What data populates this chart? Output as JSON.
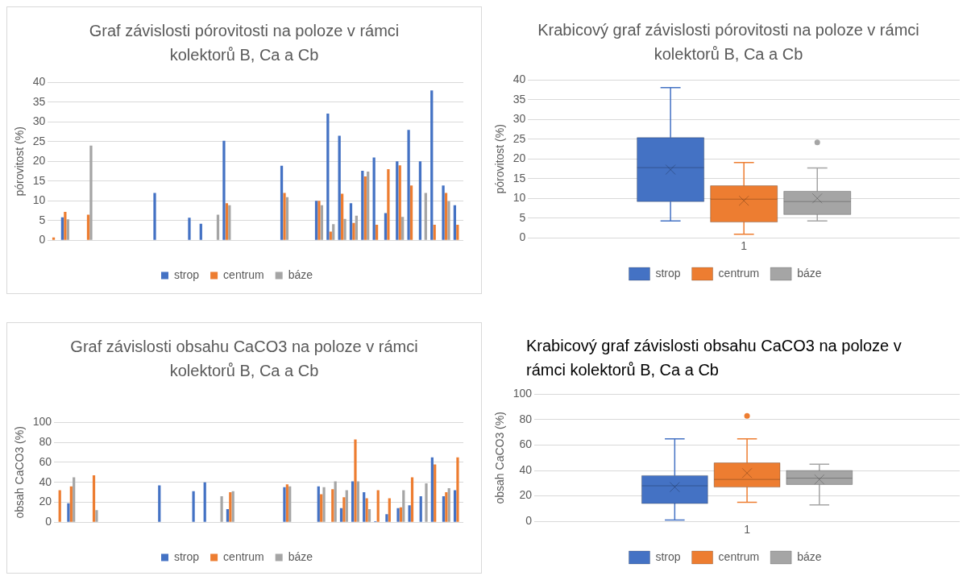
{
  "chart_data": [
    {
      "type": "bar",
      "title": "Graf závislosti pórovitosti na poloze v rámci kolektorů B, Ca a Cb",
      "ylabel": "pórovitost (%)",
      "categories": [
        null,
        null,
        null,
        null,
        null,
        null,
        null,
        null,
        null,
        null,
        null,
        null,
        null,
        null,
        null,
        null,
        null,
        null,
        null,
        null,
        null,
        null,
        null,
        null,
        null,
        null,
        null,
        null,
        null,
        null,
        null,
        null,
        null,
        null,
        null,
        null
      ],
      "series": [
        {
          "name": "strop",
          "color": "#4472c4",
          "values": [
            null,
            5.8,
            null,
            null,
            null,
            null,
            null,
            null,
            null,
            12,
            null,
            null,
            5.7,
            4.2,
            null,
            25.2,
            null,
            null,
            null,
            null,
            18.9,
            null,
            null,
            10,
            32.1,
            26.5,
            9.4,
            17.6,
            21,
            6.9,
            20,
            28,
            20,
            38,
            13.9,
            8.9
          ]
        },
        {
          "name": "centrum",
          "color": "#ed7d31",
          "values": [
            0.7,
            7.2,
            null,
            6.5,
            null,
            null,
            null,
            null,
            null,
            null,
            null,
            null,
            null,
            null,
            null,
            9.4,
            null,
            null,
            null,
            null,
            12,
            null,
            null,
            10,
            2.2,
            11.8,
            4.4,
            16.2,
            3.9,
            18,
            19,
            13.9,
            null,
            3.9,
            12,
            3.9
          ]
        },
        {
          "name": "báze",
          "color": "#a5a5a5",
          "values": [
            null,
            5.3,
            null,
            24,
            null,
            null,
            null,
            null,
            null,
            null,
            null,
            null,
            null,
            null,
            6.5,
            8.9,
            null,
            null,
            null,
            null,
            10.9,
            null,
            null,
            8.9,
            4.1,
            5.4,
            6.2,
            17.4,
            null,
            null,
            5.9,
            null,
            12,
            null,
            9.9,
            null
          ]
        }
      ],
      "ylim": [
        0,
        40
      ],
      "yticks": [
        0,
        5,
        10,
        15,
        20,
        25,
        30,
        35,
        40
      ],
      "grid": "y",
      "legend": "bottom"
    },
    {
      "type": "box",
      "title": "Krabicový graf závislosti pórovitosti na poloze v rámci kolektorů B, Ca a Cb",
      "ylabel": "pórovitost (%)",
      "categories": [
        "1"
      ],
      "series": [
        {
          "name": "strop",
          "color": "#4472c4",
          "boxes": [
            {
              "low": 4.3,
              "q1": 9.2,
              "median": 17.8,
              "q3": 25.4,
              "high": 38.1,
              "mean": 17.3
            }
          ]
        },
        {
          "name": "centrum",
          "color": "#ed7d31",
          "boxes": [
            {
              "low": 0.9,
              "q1": 4.0,
              "median": 9.8,
              "q3": 13.2,
              "high": 19.1,
              "mean": 9.4
            }
          ]
        },
        {
          "name": "báze",
          "color": "#a5a5a5",
          "boxes": [
            {
              "low": 4.3,
              "q1": 5.9,
              "median": 9.2,
              "q3": 11.8,
              "high": 17.7,
              "mean": 10.0,
              "outliers": [
                24.2
              ]
            }
          ]
        }
      ],
      "ylim": [
        0,
        40
      ],
      "yticks": [
        0,
        5,
        10,
        15,
        20,
        25,
        30,
        35,
        40
      ],
      "grid": "y",
      "legend": "bottom"
    },
    {
      "type": "bar",
      "title": "Graf závislosti obsahu CaCO3 na poloze v rámci kolektorů B, Ca a Cb",
      "ylabel": "obsah CaCO3 (%)",
      "categories": [
        null,
        null,
        null,
        null,
        null,
        null,
        null,
        null,
        null,
        null,
        null,
        null,
        null,
        null,
        null,
        null,
        null,
        null,
        null,
        null,
        null,
        null,
        null,
        null,
        null,
        null,
        null,
        null,
        null,
        null,
        null,
        null,
        null,
        null,
        null,
        null
      ],
      "series": [
        {
          "name": "strop",
          "color": "#4472c4",
          "values": [
            null,
            19,
            null,
            null,
            null,
            null,
            null,
            null,
            null,
            37,
            null,
            null,
            31,
            40,
            null,
            13,
            null,
            null,
            null,
            null,
            35,
            null,
            null,
            36,
            null,
            14,
            41,
            30,
            1,
            8,
            14,
            17,
            26,
            65,
            26,
            32
          ]
        },
        {
          "name": "centrum",
          "color": "#ed7d31",
          "values": [
            32,
            36,
            null,
            47,
            null,
            null,
            null,
            null,
            null,
            null,
            null,
            null,
            null,
            null,
            null,
            30,
            null,
            null,
            null,
            null,
            38,
            null,
            null,
            28,
            33,
            25,
            83,
            24,
            32,
            24,
            15,
            45,
            null,
            58,
            30,
            65
          ]
        },
        {
          "name": "báze",
          "color": "#a5a5a5",
          "values": [
            null,
            45,
            null,
            12,
            null,
            null,
            null,
            null,
            null,
            null,
            null,
            null,
            null,
            null,
            26,
            31,
            null,
            null,
            null,
            null,
            36,
            null,
            null,
            35,
            41,
            32,
            41,
            13,
            null,
            null,
            32,
            null,
            39,
            null,
            34,
            null
          ]
        }
      ],
      "ylim": [
        0,
        100
      ],
      "yticks": [
        0,
        20,
        40,
        60,
        80,
        100
      ],
      "grid": "y",
      "legend": "bottom"
    },
    {
      "type": "box",
      "title": "Krabicový graf závislosti obsahu CaCO3 na poloze v rámci kolektorů B, Ca a Cb",
      "ylabel": "obsah CaCO3 (%)",
      "categories": [
        "1"
      ],
      "series": [
        {
          "name": "strop",
          "color": "#4472c4",
          "boxes": [
            {
              "low": 1,
              "q1": 14,
              "median": 28,
              "q3": 36,
              "high": 65,
              "mean": 27
            }
          ]
        },
        {
          "name": "centrum",
          "color": "#ed7d31",
          "boxes": [
            {
              "low": 15,
              "q1": 27,
              "median": 33,
              "q3": 46,
              "high": 65,
              "mean": 38,
              "outliers": [
                83
              ]
            }
          ]
        },
        {
          "name": "báze",
          "color": "#a5a5a5",
          "boxes": [
            {
              "low": 13,
              "q1": 29,
              "median": 34,
              "q3": 40,
              "high": 45,
              "mean": 33
            }
          ]
        }
      ],
      "ylim": [
        0,
        100
      ],
      "yticks": [
        0,
        20,
        40,
        60,
        80,
        100
      ],
      "grid": "y",
      "legend": "bottom"
    }
  ]
}
